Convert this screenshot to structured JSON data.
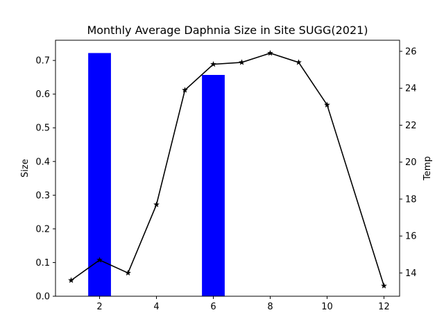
{
  "chart_data": {
    "type": "bar+line",
    "title": "Monthly Average Daphnia Size in Site SUGG(2021)",
    "xlabel": "",
    "ylabel": "Size",
    "y2label": "Temp",
    "xlim": [
      0.45,
      12.55
    ],
    "ylim": [
      0,
      0.76
    ],
    "y2lim": [
      12.74,
      26.6
    ],
    "xticks": [
      2,
      4,
      6,
      8,
      10,
      12
    ],
    "yticks": [
      0.0,
      0.1,
      0.2,
      0.3,
      0.4,
      0.5,
      0.6,
      0.7
    ],
    "y2ticks": [
      14,
      16,
      18,
      20,
      22,
      24,
      26
    ],
    "grid": false,
    "bar_series": {
      "color": "#0000ff",
      "width": 0.8,
      "x": [
        2,
        6
      ],
      "values": [
        0.722,
        0.657
      ]
    },
    "line_series": {
      "color": "#000000",
      "marker": "star",
      "x": [
        1,
        2,
        3,
        4,
        5,
        6,
        7,
        8,
        9,
        10,
        12
      ],
      "values": [
        13.6,
        14.7,
        14.0,
        17.7,
        23.9,
        25.3,
        25.4,
        25.9,
        25.4,
        23.1,
        13.3
      ]
    }
  }
}
